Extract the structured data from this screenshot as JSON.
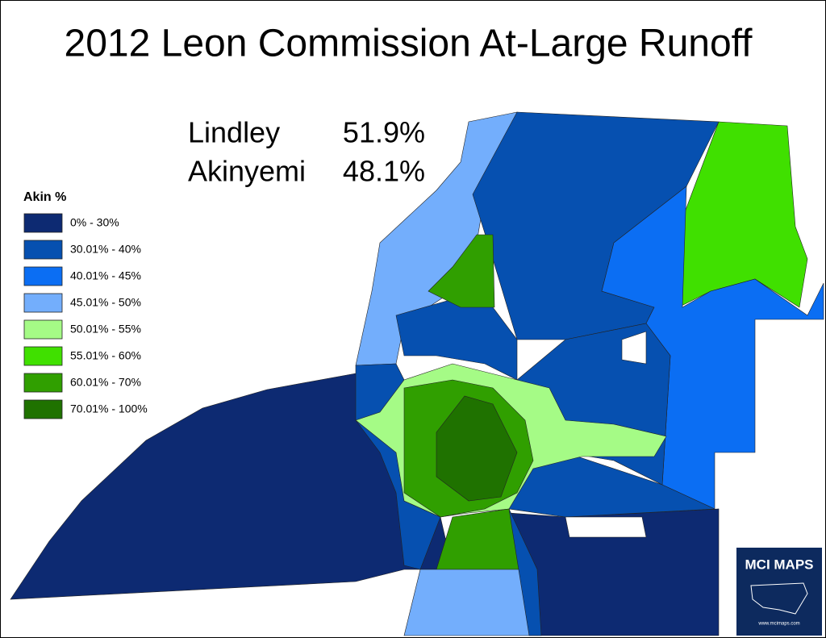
{
  "title": "2012 Leon Commission At-Large Runoff",
  "results": [
    {
      "name": "Lindley",
      "share": "51.9%"
    },
    {
      "name": "Akinyemi",
      "share": "48.1%"
    }
  ],
  "legend": {
    "title": "Akin %",
    "items": [
      {
        "label": "0% - 30%",
        "color": "#0d2a72"
      },
      {
        "label": "30.01% - 40%",
        "color": "#0650b0"
      },
      {
        "label": "40.01% - 45%",
        "color": "#0b6ef3"
      },
      {
        "label": "45.01% - 50%",
        "color": "#73aefc"
      },
      {
        "label": "50.01% - 55%",
        "color": "#a5fb86"
      },
      {
        "label": "55.01% - 60%",
        "color": "#40e000"
      },
      {
        "label": "60.01% - 70%",
        "color": "#309f00"
      },
      {
        "label": "70.01% - 100%",
        "color": "#1f7200"
      }
    ]
  },
  "logo": {
    "title": "MCI MAPS",
    "url": "www.mcimaps.com"
  }
}
